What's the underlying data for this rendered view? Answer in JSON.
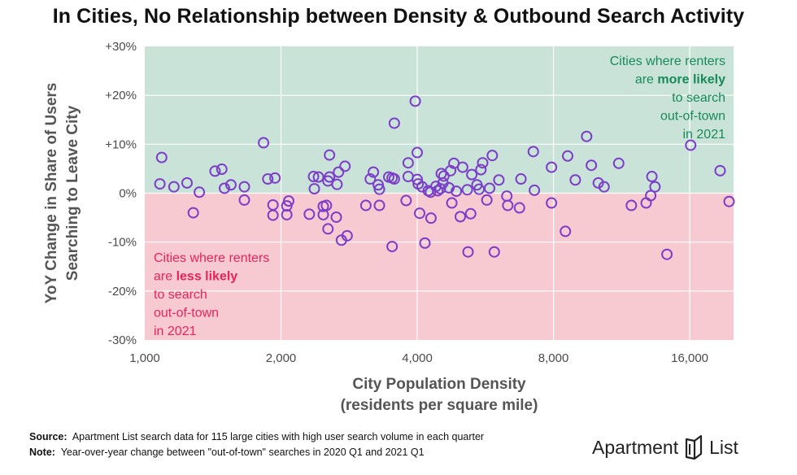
{
  "title": "In Cities, No Relationship between Density & Outbound Search Activity",
  "footer": {
    "source_label": "Source:",
    "source_text": "Apartment List search data for 115 large cities with high user search volume in each quarter",
    "note_label": "Note:",
    "note_text": "Year-over-year change between \"out-of-town\" searches in 2020 Q1 and 2021 Q1"
  },
  "logo": {
    "part1": "Apartment",
    "part2": "List",
    "icon": "apartment-list-logo-icon"
  },
  "colors": {
    "positive_region": "#c9e3d8",
    "negative_region": "#f7c9d1",
    "point_stroke": "#7c3ec9",
    "positive_text": "#178a5a",
    "negative_text": "#e8245a",
    "grid": "#ffffff"
  },
  "chart_data": {
    "type": "scatter",
    "xscale": "log",
    "xlabel_line1": "City Population Density",
    "xlabel_line2": "(residents per square mile)",
    "ylabel_line1": "YoY Change in Share of Users",
    "ylabel_line2": "Searching to Leave City",
    "xlim": [
      1000,
      20000
    ],
    "ylim": [
      -30,
      30
    ],
    "xticks": [
      1000,
      2000,
      4000,
      8000,
      16000
    ],
    "xtick_labels": [
      "1,000",
      "2,000",
      "4,000",
      "8,000",
      "16,000"
    ],
    "yticks": [
      30,
      20,
      10,
      0,
      -10,
      -20,
      -30
    ],
    "ytick_labels": [
      "+30%",
      "+20%",
      "+10%",
      "0%",
      "-10%",
      "-20%",
      "-30%"
    ],
    "grid": true,
    "annotation_positive": {
      "lines": [
        [
          {
            "t": "Cities where renters",
            "b": false
          }
        ],
        [
          {
            "t": "are ",
            "b": false
          },
          {
            "t": "more likely",
            "b": true
          }
        ],
        [
          {
            "t": "to search",
            "b": false
          }
        ],
        [
          {
            "t": "out-of-town",
            "b": false
          }
        ],
        [
          {
            "t": "in 2021",
            "b": false
          }
        ]
      ]
    },
    "annotation_negative": {
      "lines": [
        [
          {
            "t": "Cities where renters",
            "b": false
          }
        ],
        [
          {
            "t": "are ",
            "b": false
          },
          {
            "t": "less likely",
            "b": true
          }
        ],
        [
          {
            "t": "to search",
            "b": false
          }
        ],
        [
          {
            "t": "out-of-town",
            "b": false
          }
        ],
        [
          {
            "t": "in 2021",
            "b": false
          }
        ]
      ]
    },
    "points": [
      [
        1090,
        7.3
      ],
      [
        1080,
        1.9
      ],
      [
        1160,
        1.3
      ],
      [
        1240,
        2.1
      ],
      [
        1280,
        -4.0
      ],
      [
        1320,
        0.2
      ],
      [
        1430,
        4.5
      ],
      [
        1480,
        4.9
      ],
      [
        1500,
        1.0
      ],
      [
        1550,
        1.7
      ],
      [
        1660,
        1.3
      ],
      [
        1660,
        -1.4
      ],
      [
        1830,
        10.3
      ],
      [
        1870,
        2.9
      ],
      [
        1940,
        3.1
      ],
      [
        1920,
        -2.4
      ],
      [
        1920,
        -4.5
      ],
      [
        2080,
        -1.6
      ],
      [
        2060,
        -2.6
      ],
      [
        2060,
        -4.4
      ],
      [
        2310,
        -4.3
      ],
      [
        2360,
        3.4
      ],
      [
        2420,
        3.3
      ],
      [
        2370,
        0.9
      ],
      [
        2480,
        -2.7
      ],
      [
        2480,
        -4.4
      ],
      [
        2520,
        -2.5
      ],
      [
        2540,
        2.5
      ],
      [
        2540,
        -7.3
      ],
      [
        2560,
        7.8
      ],
      [
        2560,
        3.3
      ],
      [
        2660,
        1.8
      ],
      [
        2650,
        -4.9
      ],
      [
        2680,
        4.3
      ],
      [
        2720,
        -9.6
      ],
      [
        2770,
        5.5
      ],
      [
        2800,
        -8.7
      ],
      [
        3080,
        -2.5
      ],
      [
        3150,
        2.9
      ],
      [
        3200,
        4.3
      ],
      [
        3280,
        1.7
      ],
      [
        3300,
        0.8
      ],
      [
        3300,
        -2.5
      ],
      [
        3460,
        3.3
      ],
      [
        3520,
        3.1
      ],
      [
        3560,
        2.9
      ],
      [
        3520,
        -10.9
      ],
      [
        3560,
        14.3
      ],
      [
        3820,
        6.2
      ],
      [
        3780,
        -1.5
      ],
      [
        3820,
        3.4
      ],
      [
        3960,
        18.8
      ],
      [
        4000,
        8.3
      ],
      [
        4000,
        2.8
      ],
      [
        4020,
        1.9
      ],
      [
        4050,
        -4.1
      ],
      [
        4100,
        1.3
      ],
      [
        4160,
        -10.2
      ],
      [
        4230,
        0.5
      ],
      [
        4280,
        0.2
      ],
      [
        4290,
        -5.1
      ],
      [
        4400,
        1.4
      ],
      [
        4440,
        0.5
      ],
      [
        4500,
        0.9
      ],
      [
        4520,
        4.0
      ],
      [
        4560,
        2.1
      ],
      [
        4580,
        3.5
      ],
      [
        4700,
        1.1
      ],
      [
        4740,
        4.6
      ],
      [
        4770,
        -2.0
      ],
      [
        4820,
        6.1
      ],
      [
        4880,
        0.4
      ],
      [
        4980,
        -4.8
      ],
      [
        5040,
        5.3
      ],
      [
        5160,
        0.7
      ],
      [
        5180,
        -12.0
      ],
      [
        5250,
        -4.2
      ],
      [
        5280,
        3.8
      ],
      [
        5420,
        1.7
      ],
      [
        5480,
        0.8
      ],
      [
        5530,
        4.8
      ],
      [
        5580,
        6.2
      ],
      [
        5700,
        -1.4
      ],
      [
        5780,
        1.0
      ],
      [
        5860,
        7.7
      ],
      [
        5920,
        -12.0
      ],
      [
        6060,
        2.7
      ],
      [
        6310,
        -0.6
      ],
      [
        6340,
        -2.5
      ],
      [
        6730,
        -3.0
      ],
      [
        6780,
        2.9
      ],
      [
        7220,
        8.5
      ],
      [
        7260,
        0.6
      ],
      [
        7920,
        -2.0
      ],
      [
        7920,
        5.3
      ],
      [
        8500,
        -7.8
      ],
      [
        8600,
        7.6
      ],
      [
        8940,
        2.7
      ],
      [
        9470,
        11.6
      ],
      [
        9700,
        5.7
      ],
      [
        10050,
        2.1
      ],
      [
        10350,
        1.3
      ],
      [
        11150,
        6.1
      ],
      [
        11890,
        -2.5
      ],
      [
        12820,
        -2.0
      ],
      [
        13120,
        -0.5
      ],
      [
        13200,
        3.4
      ],
      [
        13410,
        1.3
      ],
      [
        14250,
        -12.5
      ],
      [
        16080,
        9.8
      ],
      [
        18680,
        4.6
      ],
      [
        19550,
        -1.7
      ]
    ]
  }
}
